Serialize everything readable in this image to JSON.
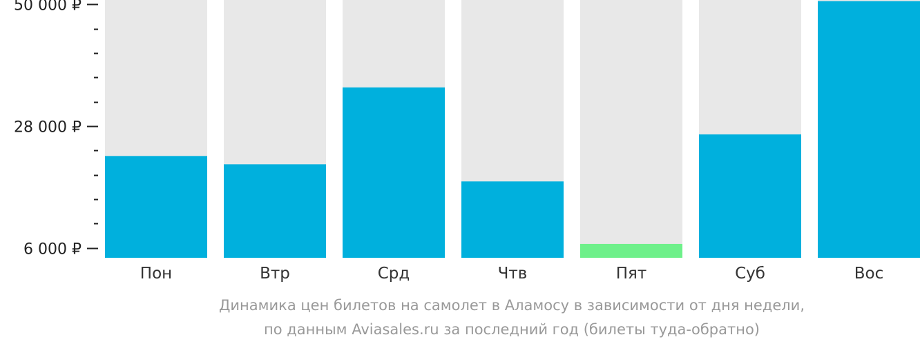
{
  "caption": {
    "line1": "Динамика цен билетов на самолет в Аламосу в зависимости от дня недели,",
    "line2": "по данным Aviasales.ru за последний год (билеты туда-обратно)"
  },
  "colors": {
    "bar": "#00b0dd",
    "bar_min": "#6ef08a",
    "track": "#e8e8e8",
    "axis": "#222222"
  },
  "chart_data": {
    "type": "bar",
    "categories": [
      "Пон",
      "Втр",
      "Срд",
      "Чтв",
      "Пят",
      "Суб",
      "Вос"
    ],
    "values": [
      22600,
      21100,
      35000,
      18000,
      6700,
      26500,
      50600
    ],
    "highlight_min_index": 4,
    "ylim": [
      4200,
      50800
    ],
    "y_major_ticks": [
      6000,
      28000,
      50000
    ],
    "y_tick_labels": [
      "6 000 ₽",
      "28 000 ₽",
      "50 000 ₽"
    ],
    "y_minor_step": 4400,
    "title": "",
    "xlabel": "",
    "ylabel": ""
  }
}
